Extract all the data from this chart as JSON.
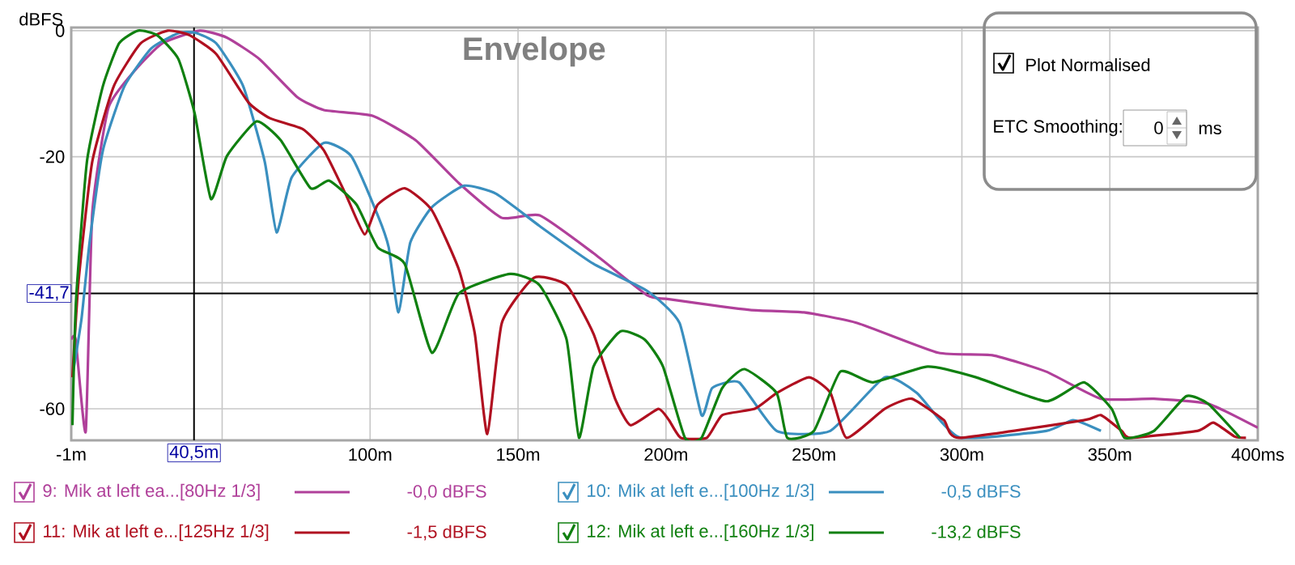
{
  "chart_data": {
    "type": "line",
    "title": "Envelope",
    "ylabel": "dBFS",
    "xlim": [
      -1,
      400
    ],
    "ylim": [
      -65,
      0.5
    ],
    "xticks": [
      {
        "value": -1,
        "label": "-1m"
      },
      {
        "value": 50,
        "label": null
      },
      {
        "value": 100,
        "label": "100m"
      },
      {
        "value": 150,
        "label": "150m"
      },
      {
        "value": 200,
        "label": "200m"
      },
      {
        "value": 250,
        "label": "250m"
      },
      {
        "value": 300,
        "label": "300m"
      },
      {
        "value": 350,
        "label": "350m"
      },
      {
        "value": 400,
        "label": "400ms"
      }
    ],
    "yticks": [
      0,
      {
        "value": -20,
        "label": "-20"
      },
      {
        "value": -40,
        "label": null
      },
      {
        "value": -60,
        "label": "-60"
      }
    ],
    "grid": true,
    "legend": "bottom",
    "marker": "none",
    "line_style": "solid",
    "ref_lines": [
      {
        "axis": "y",
        "value": -41.7,
        "label": "-41,7",
        "color": "#000000"
      },
      {
        "axis": "x",
        "value": 40.5,
        "label": "40,5m",
        "color": "#000000"
      }
    ],
    "annotations": [
      "Plot Normalised",
      "ETC Smoothing:",
      "0",
      "ms",
      "-0,0 dBFS",
      "-0,5 dBFS",
      "-1,5 dBFS",
      "-13,2 dBFS"
    ],
    "series": [
      {
        "name": "9: Mik at left ea...[80Hz 1/3]",
        "color": "#b0409a",
        "x": [
          -1,
          0.5,
          3.9,
          6.1,
          11.6,
          20.7,
          29.8,
          42.4,
          51.6,
          62.6,
          75.3,
          84.4,
          100.8,
          115.4,
          130,
          144.5,
          157.3,
          175.5,
          193.7,
          201,
          228.3,
          246.6,
          264.8,
          292,
          310.3,
          328.5,
          347,
          364.9,
          383.2,
          400
        ],
        "values": [
          -49,
          -49,
          -63.6,
          -29,
          -12.2,
          -6.2,
          -2,
          0,
          -1.1,
          -4.5,
          -10.5,
          -12.6,
          -13.5,
          -17.4,
          -24.2,
          -29.7,
          -29.3,
          -35.3,
          -42,
          -42.6,
          -44.3,
          -44.7,
          -46.4,
          -51.1,
          -51.5,
          -54.1,
          -58.4,
          -58.4,
          -59.2,
          -63
        ]
      },
      {
        "name": "10: Mik at left e...[100Hz 1/3]",
        "color": "#3a8fbf",
        "x": [
          -0.3,
          2.5,
          5.2,
          9.7,
          17,
          26.1,
          35.2,
          40.7,
          48,
          57.1,
          64.4,
          68.4,
          73.5,
          84.4,
          93.6,
          102.6,
          106.3,
          109.6,
          113.6,
          120.9,
          131.8,
          142.7,
          157.3,
          175.5,
          193.7,
          204.6,
          212,
          215.6,
          224.7,
          237.4,
          255.5,
          273.9,
          284.8,
          299,
          328.5,
          337.6,
          347
        ],
        "values": [
          -54,
          -45.6,
          -33.6,
          -19,
          -8.8,
          -2.8,
          -0.4,
          -0.3,
          -2,
          -8.8,
          -20.8,
          -32,
          -23.3,
          -17.8,
          -19.9,
          -29.3,
          -34.4,
          -44.7,
          -33.6,
          -28,
          -24.6,
          -25.9,
          -31,
          -37,
          -41.3,
          -46.4,
          -61,
          -56.7,
          -55.8,
          -63.5,
          -63.5,
          -55,
          -57.5,
          -64.5,
          -63.5,
          -61.8,
          -63.5
        ]
      },
      {
        "name": "11: Mik at left e...[125Hz 1/3]",
        "color": "#b01020",
        "x": [
          -0.6,
          1.5,
          6.1,
          13.4,
          22.5,
          31.6,
          38.9,
          48,
          58.9,
          66.2,
          77.2,
          84.4,
          91.7,
          98.1,
          102.6,
          111.7,
          120.9,
          130,
          135.4,
          139.6,
          144.5,
          155.4,
          166.4,
          175.5,
          182.8,
          188,
          197.4,
          201,
          205,
          213.8,
          219,
          230,
          237.4,
          248.3,
          255.6,
          261,
          273.9,
          283,
          293.9,
          299,
          341.2,
          347,
          354,
          357,
          379.6,
          385,
          392.2,
          396
        ],
        "values": [
          -55,
          -39.6,
          -20.8,
          -8.8,
          -2,
          0,
          -0.7,
          -3.7,
          -11.4,
          -13.9,
          -15.6,
          -19,
          -25.9,
          -32.3,
          -27.6,
          -25,
          -28.5,
          -37.9,
          -48.1,
          -64,
          -46.4,
          -39.2,
          -40.4,
          -48.1,
          -58.4,
          -62.6,
          -60,
          -61.8,
          -64.6,
          -64.6,
          -61,
          -60,
          -57.5,
          -55,
          -57.5,
          -64.6,
          -60,
          -58.4,
          -61.8,
          -64.6,
          -61.8,
          -61,
          -63.5,
          -64.6,
          -63.5,
          -62.2,
          -64.4,
          -64.6
        ]
      },
      {
        "name": "12: Mik at left e...[160Hz 1/3]",
        "color": "#108010",
        "x": [
          -0.6,
          0.6,
          4.3,
          9.7,
          15.2,
          21.6,
          28,
          35.2,
          40.7,
          46.2,
          51.6,
          61.6,
          69.8,
          79.9,
          86.2,
          95.4,
          102.6,
          111.7,
          120.9,
          130,
          147.3,
          157.3,
          166.4,
          170.6,
          175.5,
          184.6,
          192.8,
          199,
          206.4,
          212,
          219,
          226.5,
          237.4,
          241,
          250,
          258.9,
          269.9,
          288.4,
          304.8,
          328.5,
          341.2,
          350.6,
          355,
          364.9,
          375.8,
          383.2,
          394
        ],
        "values": [
          -62.6,
          -43,
          -20.8,
          -8.8,
          -2,
          0,
          -0.7,
          -4.5,
          -13.1,
          -26.7,
          -19.9,
          -14.4,
          -17.4,
          -25,
          -23.8,
          -27.6,
          -34.4,
          -37,
          -51.1,
          -41.7,
          -38.6,
          -40.4,
          -49,
          -64.6,
          -53.3,
          -47.7,
          -49,
          -53.3,
          -64.6,
          -64.6,
          -56.7,
          -53.7,
          -57.5,
          -64.6,
          -63.5,
          -54.1,
          -55.8,
          -53.3,
          -55,
          -58.8,
          -55.8,
          -60,
          -64.6,
          -63.5,
          -58,
          -59.2,
          -64.6
        ]
      }
    ]
  }
}
